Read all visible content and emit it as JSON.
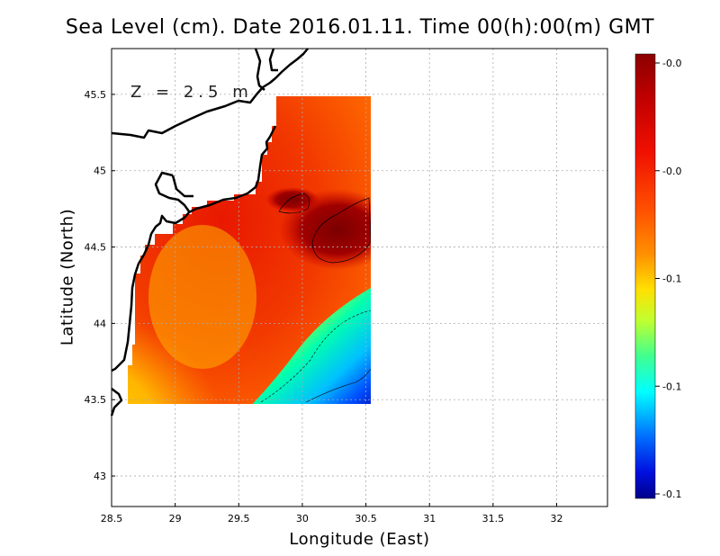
{
  "title": "Sea Level (cm). Date 2016.01.11. Time 00(h):00(m) GMT",
  "depth_label": "Z = 2.5 m",
  "xaxis": {
    "label": "Longitude (East)",
    "range": [
      28.5,
      32.4
    ],
    "ticks": [
      "28.5",
      "29",
      "29.5",
      "30",
      "30.5",
      "31",
      "31.5",
      "32"
    ]
  },
  "yaxis": {
    "label": "Latitude (North)",
    "range": [
      42.8,
      45.8
    ],
    "ticks": [
      "43",
      "43.5",
      "44",
      "44.5",
      "45",
      "45.5"
    ]
  },
  "colorbar": {
    "labels": [
      "-0.0",
      "-0.0",
      "-0.1",
      "-0.1",
      "-0.1"
    ],
    "colors_top_to_bottom": [
      "#8b0000",
      "#e00000",
      "#ff3300",
      "#ff8000",
      "#ffcc00",
      "#ffff00",
      "#80ff40",
      "#00ff80",
      "#00ffff",
      "#0080ff",
      "#0000ff",
      "#00008b"
    ]
  },
  "field_data": {
    "variable": "Sea Level (cm)",
    "lon_range": [
      28.63,
      30.55
    ],
    "lat_range": [
      43.48,
      45.5
    ],
    "pattern": "values near -0.0 over most of the domain (red/orange), maximum (dark red) near 30.3E 44.6N, decreasing toward the southeast corner (blue, about -0.1)"
  },
  "grid": true
}
